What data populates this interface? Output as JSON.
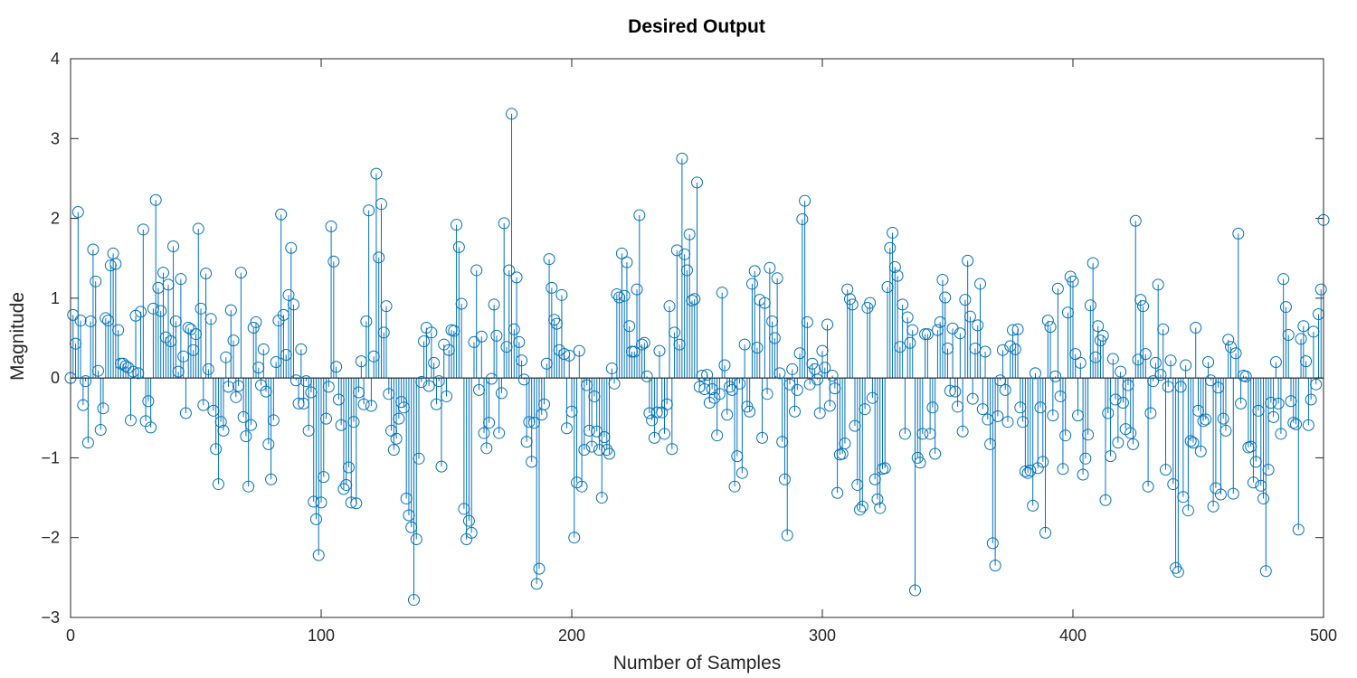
{
  "chart_data": {
    "type": "stem",
    "title": "Desired Output",
    "xlabel": "Number of Samples",
    "ylabel": "Magnitude",
    "xlim": [
      0,
      500
    ],
    "ylim": [
      -3,
      4
    ],
    "xticks": [
      0,
      100,
      200,
      300,
      400,
      500
    ],
    "yticks": [
      -3,
      -2,
      -1,
      0,
      1,
      2,
      3,
      4
    ],
    "xtick_labels": [
      "0",
      "100",
      "200",
      "300",
      "400",
      "500"
    ],
    "ytick_labels": [
      "−3",
      "−2",
      "−1",
      "0",
      "1",
      "2",
      "3",
      "4"
    ],
    "grid": false,
    "color": "#0072BD",
    "marker": "circle",
    "series": [
      {
        "x_start": 0,
        "x_step": 1,
        "values": [
          0.0,
          0.79,
          0.43,
          2.08,
          0.72,
          -0.34,
          -0.04,
          -0.81,
          0.71,
          1.61,
          1.21,
          0.09,
          -0.65,
          -0.38,
          0.75,
          0.72,
          1.41,
          1.56,
          1.43,
          0.6,
          0.18,
          0.18,
          0.15,
          0.13,
          -0.53,
          0.08,
          0.78,
          0.06,
          0.83,
          1.86,
          -0.54,
          -0.29,
          -0.62,
          0.87,
          2.23,
          1.13,
          0.84,
          1.32,
          0.51,
          1.17,
          0.46,
          1.65,
          0.71,
          0.08,
          1.24,
          0.27,
          -0.44,
          0.63,
          0.61,
          0.35,
          0.55,
          1.87,
          0.87,
          -0.34,
          1.31,
          0.11,
          0.74,
          -0.41,
          -0.89,
          -1.33,
          -0.55,
          -0.66,
          0.26,
          -0.11,
          0.85,
          0.47,
          -0.24,
          -0.1,
          1.32,
          -0.49,
          -0.73,
          -1.36,
          -0.59,
          0.63,
          0.7,
          0.13,
          -0.09,
          0.36,
          -0.17,
          -0.83,
          -1.27,
          -0.53,
          0.2,
          0.72,
          2.05,
          0.79,
          0.29,
          1.04,
          1.63,
          0.92,
          -0.03,
          -0.32,
          0.36,
          -0.32,
          -0.04,
          -0.66,
          -0.18,
          -1.55,
          -1.77,
          -2.22,
          -1.56,
          -1.24,
          -0.51,
          -0.11,
          1.9,
          1.46,
          0.14,
          -0.27,
          -0.59,
          -1.39,
          -1.34,
          -1.12,
          -1.56,
          -0.55,
          -1.57,
          -0.18,
          0.21,
          -0.33,
          0.71,
          2.1,
          -0.35,
          0.27,
          2.56,
          1.51,
          2.18,
          0.57,
          0.9,
          -0.2,
          -0.66,
          -0.9,
          -0.76,
          -0.51,
          -0.3,
          -0.37,
          -1.51,
          -1.72,
          -1.87,
          -2.78,
          -2.02,
          -1.01,
          -0.05,
          0.46,
          0.63,
          -0.1,
          0.57,
          0.19,
          -0.33,
          -0.04,
          -1.11,
          0.42,
          -0.23,
          0.35,
          0.6,
          0.59,
          1.92,
          1.64,
          0.93,
          -1.64,
          -2.02,
          -1.79,
          -1.94,
          0.45,
          1.35,
          -0.15,
          0.52,
          -0.69,
          -0.88,
          -0.56,
          -0.01,
          0.92,
          0.53,
          -0.69,
          -0.19,
          1.94,
          0.39,
          1.35,
          3.31,
          0.61,
          1.26,
          0.45,
          0.22,
          -0.02,
          -0.8,
          -0.55,
          -1.05,
          -0.56,
          -2.58,
          -2.39,
          -0.46,
          -0.33,
          0.18,
          1.49,
          1.13,
          0.73,
          0.68,
          0.35,
          1.04,
          0.3,
          -0.63,
          0.28,
          -0.42,
          -2.0,
          -1.31,
          0.34,
          -1.36,
          -0.9,
          -0.09,
          -0.66,
          -0.86,
          -0.23,
          -0.67,
          -0.9,
          -1.5,
          -0.74,
          -0.9,
          -0.95,
          0.12,
          -0.07,
          1.05,
          1.01,
          1.56,
          1.03,
          1.45,
          0.65,
          0.33,
          0.33,
          1.11,
          2.04,
          0.42,
          0.44,
          0.02,
          -0.44,
          -0.53,
          -0.75,
          -0.43,
          0.34,
          -0.43,
          -0.7,
          -0.33,
          0.9,
          -0.89,
          0.57,
          1.6,
          0.42,
          2.75,
          1.55,
          1.35,
          1.8,
          0.97,
          0.99,
          2.45,
          -0.11,
          0.03,
          -0.14,
          0.04,
          -0.31,
          -0.14,
          -0.25,
          -0.72,
          -0.2,
          1.07,
          0.16,
          -0.46,
          -0.11,
          -0.15,
          -1.36,
          -0.98,
          -0.07,
          -1.19,
          0.42,
          -0.36,
          -0.42,
          1.18,
          1.34,
          0.38,
          0.98,
          -0.75,
          0.94,
          -0.2,
          1.38,
          0.71,
          0.5,
          1.25,
          0.06,
          -0.8,
          -1.27,
          -1.97,
          -0.08,
          0.11,
          -0.42,
          -0.15,
          0.31,
          1.99,
          2.22,
          0.7,
          -0.08,
          0.18,
          0.11,
          -0.02,
          -0.44,
          0.34,
          0.13,
          0.67,
          -0.35,
          0.03,
          -0.13,
          -1.44,
          -0.96,
          -0.95,
          -0.82,
          1.11,
          0.99,
          0.92,
          -0.6,
          -1.34,
          -1.65,
          -1.61,
          -0.39,
          0.88,
          0.94,
          -0.25,
          -1.27,
          -1.52,
          -1.63,
          -1.14,
          -1.13,
          1.14,
          1.63,
          1.82,
          1.39,
          1.28,
          0.39,
          0.92,
          -0.7,
          0.76,
          0.44,
          0.6,
          -2.66,
          -1.0,
          -1.06,
          -0.7,
          0.55,
          0.55,
          -0.7,
          -0.37,
          -0.95,
          0.6,
          0.7,
          1.23,
          1.01,
          0.37,
          -0.16,
          0.62,
          -0.17,
          -0.36,
          0.56,
          -0.67,
          0.98,
          1.47,
          0.77,
          -0.26,
          0.37,
          0.66,
          1.18,
          -0.39,
          0.33,
          -0.52,
          -0.83,
          -2.07,
          -2.35,
          -0.48,
          -0.03,
          0.35,
          -0.15,
          -0.55,
          0.4,
          0.6,
          0.36,
          0.61,
          -0.37,
          -0.55,
          -1.17,
          -1.19,
          -1.16,
          -1.6,
          0.06,
          -1.13,
          -0.37,
          -1.05,
          -1.94,
          0.72,
          0.64,
          -0.47,
          0.02,
          1.12,
          -0.23,
          -1.14,
          -0.72,
          0.82,
          1.27,
          1.21,
          0.3,
          -0.47,
          0.19,
          -1.21,
          -1.01,
          -0.71,
          0.91,
          1.44,
          0.26,
          0.65,
          0.47,
          0.53,
          -1.53,
          -0.44,
          -0.98,
          0.24,
          -0.27,
          -0.81,
          0.08,
          -0.31,
          -0.64,
          -0.09,
          -0.69,
          -0.83,
          1.97,
          0.23,
          0.98,
          0.9,
          0.3,
          -1.36,
          -0.44,
          -0.04,
          0.19,
          1.17,
          0.04,
          0.61,
          -1.15,
          -0.11,
          0.22,
          -1.33,
          -2.38,
          -2.43,
          -0.11,
          -1.49,
          0.16,
          -1.66,
          -0.79,
          -0.81,
          0.63,
          -0.41,
          -0.92,
          -0.54,
          -0.52,
          0.2,
          -0.03,
          -1.61,
          -1.38,
          -0.12,
          -1.46,
          -0.51,
          -0.66,
          0.48,
          0.39,
          -1.45,
          0.31,
          1.81,
          -0.32,
          0.03,
          0.02,
          -0.87,
          -0.86,
          -1.31,
          -1.05,
          -0.41,
          -1.35,
          -1.51,
          -2.42,
          -1.15,
          -0.31,
          -0.49,
          0.2,
          -0.32,
          -0.7,
          1.24,
          0.89,
          0.54,
          -0.29,
          -0.56,
          -0.58,
          -1.9,
          0.49,
          0.65,
          0.21,
          -0.59,
          -0.27,
          0.58,
          -0.08,
          0.8,
          1.11,
          1.98
        ]
      }
    ]
  }
}
